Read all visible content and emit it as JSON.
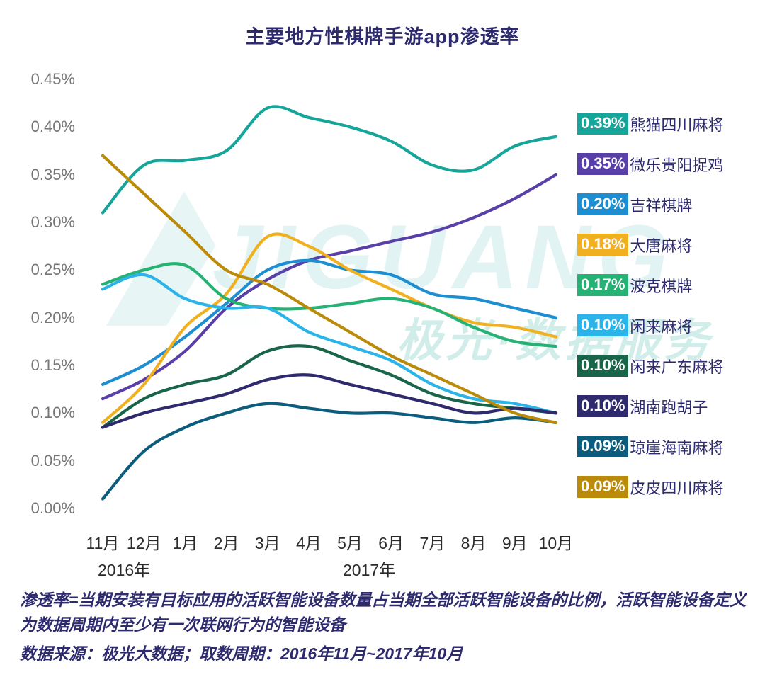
{
  "watermark": {
    "brand": "JIGUANG",
    "caption": "极光·数据服务"
  },
  "chart_data": {
    "type": "line",
    "title": "主要地方性棋牌手游app渗透率",
    "unit": "percent",
    "ylim": [
      0,
      0.45
    ],
    "grid": false,
    "legend_position": "right",
    "y_ticks": [
      "0.45%",
      "0.40%",
      "0.35%",
      "0.30%",
      "0.25%",
      "0.20%",
      "0.15%",
      "0.10%",
      "0.05%",
      "0.00%"
    ],
    "categories": [
      "11月",
      "12月",
      "1月",
      "2月",
      "3月",
      "4月",
      "5月",
      "6月",
      "7月",
      "8月",
      "9月",
      "10月"
    ],
    "year_labels": [
      {
        "text": "2016年"
      },
      {
        "text": "2017年"
      }
    ],
    "series": [
      {
        "name": "熊猫四川麻将",
        "final": "0.39%",
        "color": "#16a59a",
        "values": [
          0.31,
          0.36,
          0.365,
          0.375,
          0.42,
          0.41,
          0.4,
          0.385,
          0.36,
          0.355,
          0.38,
          0.39
        ]
      },
      {
        "name": "微乐贵阳捉鸡",
        "final": "0.35%",
        "color": "#5940a8",
        "values": [
          0.115,
          0.135,
          0.165,
          0.21,
          0.24,
          0.26,
          0.27,
          0.28,
          0.29,
          0.305,
          0.325,
          0.35
        ]
      },
      {
        "name": "吉祥棋牌",
        "final": "0.20%",
        "color": "#1e8ed2",
        "values": [
          0.13,
          0.15,
          0.18,
          0.215,
          0.25,
          0.26,
          0.25,
          0.245,
          0.225,
          0.22,
          0.21,
          0.2
        ]
      },
      {
        "name": "大唐麻将",
        "final": "0.18%",
        "color": "#f0b020",
        "values": [
          0.09,
          0.13,
          0.19,
          0.225,
          0.285,
          0.275,
          0.25,
          0.23,
          0.21,
          0.195,
          0.19,
          0.18
        ]
      },
      {
        "name": "波克棋牌",
        "final": "0.17%",
        "color": "#25b274",
        "values": [
          0.235,
          0.25,
          0.255,
          0.22,
          0.21,
          0.21,
          0.215,
          0.22,
          0.21,
          0.19,
          0.175,
          0.17
        ]
      },
      {
        "name": "闲来麻将",
        "final": "0.10%",
        "color": "#2ab4e9",
        "values": [
          0.23,
          0.245,
          0.22,
          0.21,
          0.21,
          0.185,
          0.17,
          0.155,
          0.13,
          0.115,
          0.11,
          0.1
        ]
      },
      {
        "name": "闲来广东麻将",
        "final": "0.10%",
        "color": "#186549",
        "values": [
          0.085,
          0.115,
          0.13,
          0.14,
          0.165,
          0.17,
          0.155,
          0.14,
          0.12,
          0.11,
          0.105,
          0.1
        ]
      },
      {
        "name": "湖南跑胡子",
        "final": "0.10%",
        "color": "#2e2a6d",
        "values": [
          0.085,
          0.1,
          0.11,
          0.12,
          0.135,
          0.14,
          0.13,
          0.12,
          0.11,
          0.1,
          0.105,
          0.1
        ]
      },
      {
        "name": "琼崖海南麻将",
        "final": "0.09%",
        "color": "#0c5d7d",
        "values": [
          0.01,
          0.06,
          0.085,
          0.1,
          0.11,
          0.105,
          0.1,
          0.1,
          0.095,
          0.09,
          0.095,
          0.09
        ]
      },
      {
        "name": "皮皮四川麻将",
        "final": "0.09%",
        "color": "#ba8a08",
        "values": [
          0.37,
          0.33,
          0.29,
          0.25,
          0.235,
          0.21,
          0.185,
          0.16,
          0.14,
          0.12,
          0.1,
          0.09
        ]
      }
    ]
  },
  "legend": {
    "items": [
      {
        "value": "0.39%",
        "name": "熊猫四川麻将",
        "color": "#16a59a"
      },
      {
        "value": "0.35%",
        "name": "微乐贵阳捉鸡",
        "color": "#5940a8"
      },
      {
        "value": "0.20%",
        "name": "吉祥棋牌",
        "color": "#1e8ed2"
      },
      {
        "value": "0.18%",
        "name": "大唐麻将",
        "color": "#f0b020"
      },
      {
        "value": "0.17%",
        "name": "波克棋牌",
        "color": "#25b274"
      },
      {
        "value": "0.10%",
        "name": "闲来麻将",
        "color": "#2ab4e9"
      },
      {
        "value": "0.10%",
        "name": "闲来广东麻将",
        "color": "#186549"
      },
      {
        "value": "0.10%",
        "name": "湖南跑胡子",
        "color": "#2e2a6d"
      },
      {
        "value": "0.09%",
        "name": "琼崖海南麻将",
        "color": "#0c5d7d"
      },
      {
        "value": "0.09%",
        "name": "皮皮四川麻将",
        "color": "#ba8a08"
      }
    ]
  },
  "notes": {
    "definition": "渗透率=当期安装有目标应用的活跃智能设备数量占当期全部活跃智能设备的比例，活跃智能设备定义为数据周期内至少有一次联网行为的智能设备",
    "source": "数据来源：极光大数据；取数周期：2016年11月~2017年10月"
  }
}
